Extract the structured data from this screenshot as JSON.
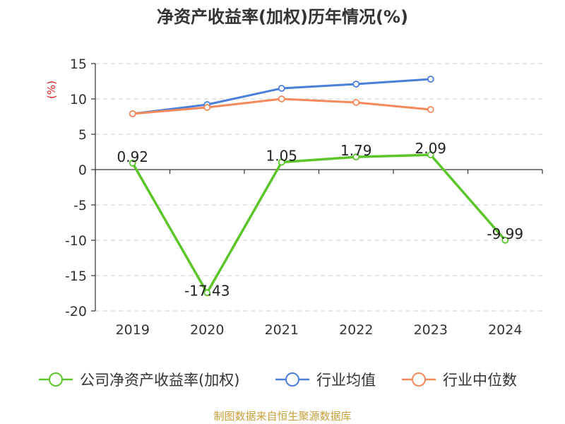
{
  "chart_data": {
    "type": "line",
    "title": "净资产收益率(加权)历年情况(%)",
    "ylabel": "(%)",
    "categories": [
      "2019",
      "2020",
      "2021",
      "2022",
      "2023",
      "2024"
    ],
    "ylim": [
      -20,
      15
    ],
    "yticks": [
      15,
      10,
      5,
      0,
      -5,
      -10,
      -15,
      -20
    ],
    "grid": true,
    "legend_position": "bottom",
    "series": [
      {
        "name": "公司净资产收益率(加权)",
        "color": "#5cc52a",
        "values": [
          0.92,
          -17.43,
          1.05,
          1.79,
          2.09,
          -9.99
        ],
        "labels": [
          "0.92",
          "-17.43",
          "1.05",
          "1.79",
          "2.09",
          "-9.99"
        ]
      },
      {
        "name": "行业均值",
        "color": "#4a7fdc",
        "values": [
          7.9,
          9.2,
          11.5,
          12.1,
          12.8,
          null
        ]
      },
      {
        "name": "行业中位数",
        "color": "#f5895a",
        "values": [
          7.9,
          8.8,
          10.0,
          9.5,
          8.5,
          null
        ]
      }
    ]
  },
  "footer": {
    "source": "制图数据来自恒生聚源数据库"
  }
}
